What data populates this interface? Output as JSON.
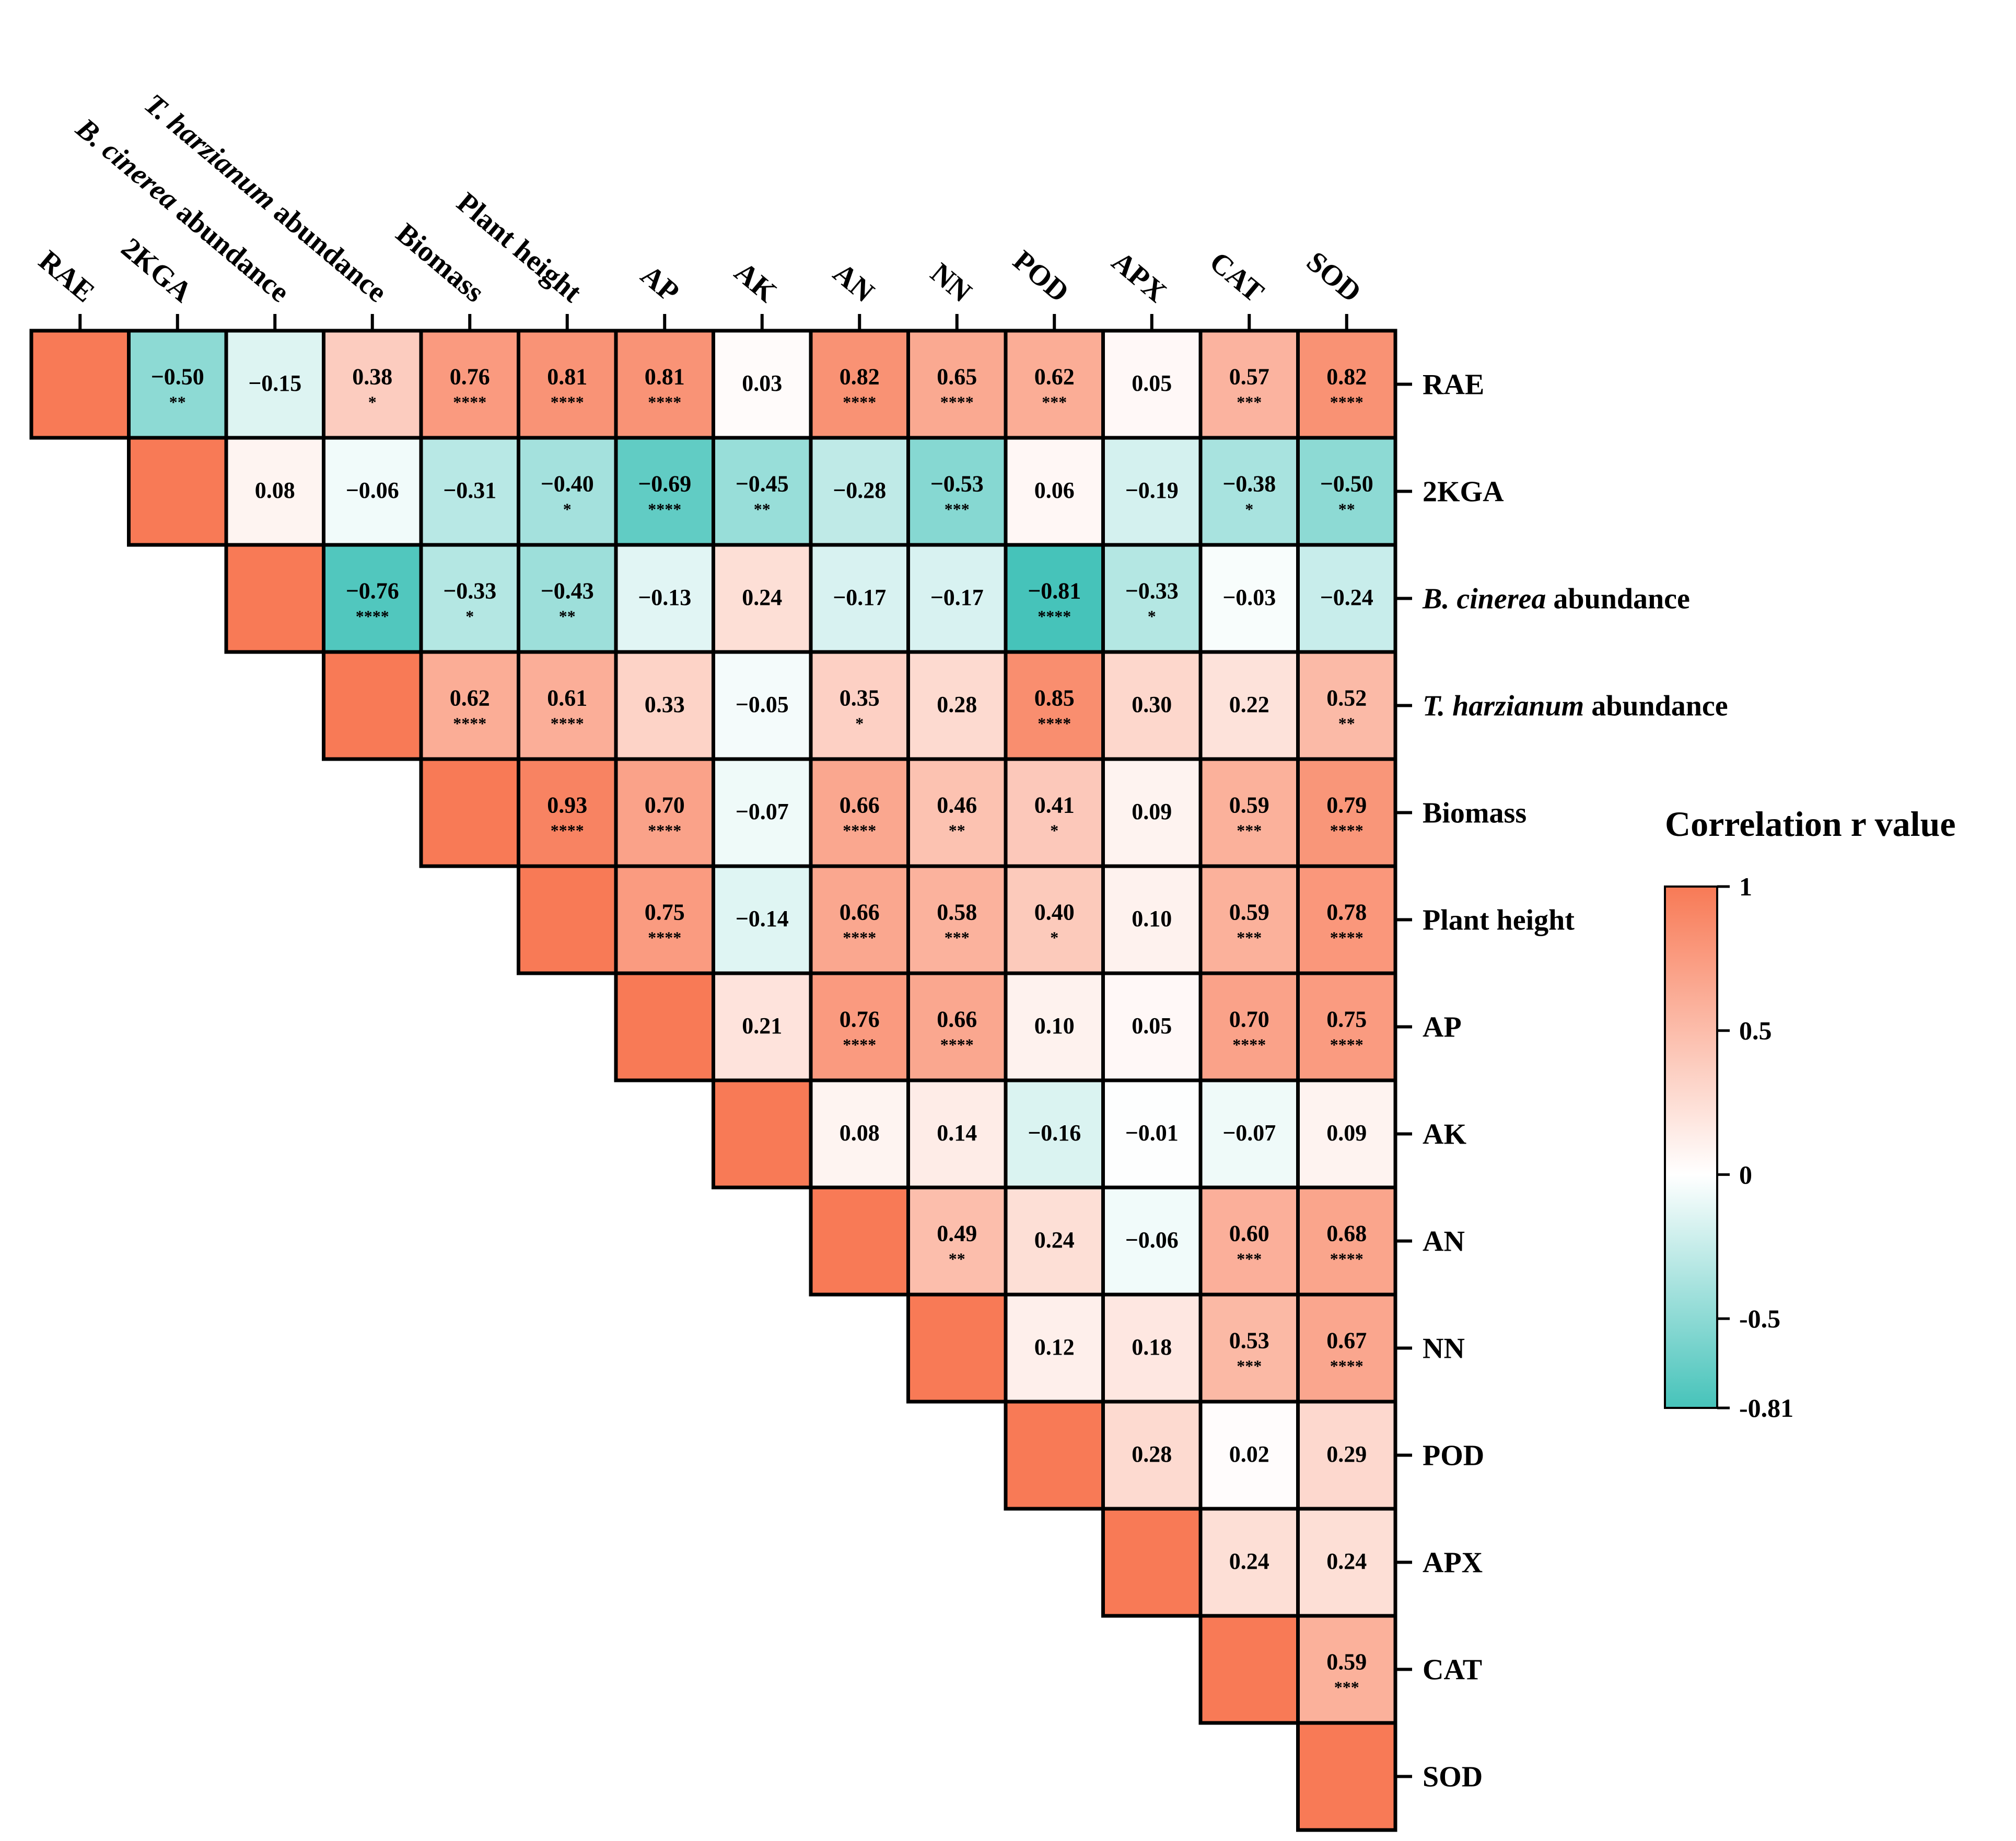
{
  "chart_data": {
    "type": "heatmap",
    "title": "",
    "colorbar": {
      "title": "Correlation r value",
      "min": -0.81,
      "max": 1,
      "ticks": [
        {
          "value": 1,
          "label": "1"
        },
        {
          "value": 0.5,
          "label": "0.5"
        },
        {
          "value": 0,
          "label": "0"
        },
        {
          "value": -0.5,
          "label": "-0.5"
        },
        {
          "value": -0.81,
          "label": "-0.81"
        }
      ]
    },
    "colors": {
      "positive": "#f87a56",
      "neutral": "#ffffff",
      "negative": "#46c3ba",
      "border": "#000000"
    },
    "variables": [
      {
        "label": "RAE"
      },
      {
        "label": "2KGA"
      },
      {
        "italic": "B. cinerea",
        "rest": "abundance"
      },
      {
        "italic": "T. harzianum",
        "rest": "abundance"
      },
      {
        "label": "Biomass"
      },
      {
        "label": "Plant  height"
      },
      {
        "label": "AP"
      },
      {
        "label": "AK"
      },
      {
        "label": "AN"
      },
      {
        "label": "NN"
      },
      {
        "label": "POD"
      },
      {
        "label": "APX"
      },
      {
        "label": "CAT"
      },
      {
        "label": "SOD"
      }
    ],
    "matrix": [
      [
        null,
        -0.5,
        -0.15,
        0.38,
        0.76,
        0.81,
        0.81,
        0.03,
        0.82,
        0.65,
        0.62,
        0.05,
        0.57,
        0.82
      ],
      [
        null,
        null,
        0.08,
        -0.06,
        -0.31,
        -0.4,
        -0.69,
        -0.45,
        -0.28,
        -0.53,
        0.06,
        -0.19,
        -0.38,
        -0.5
      ],
      [
        null,
        null,
        null,
        -0.76,
        -0.33,
        -0.43,
        -0.13,
        0.24,
        -0.17,
        -0.17,
        -0.81,
        -0.33,
        -0.03,
        -0.24
      ],
      [
        null,
        null,
        null,
        null,
        0.62,
        0.61,
        0.33,
        -0.05,
        0.35,
        0.28,
        0.85,
        0.3,
        0.22,
        0.52
      ],
      [
        null,
        null,
        null,
        null,
        null,
        0.93,
        0.7,
        -0.07,
        0.66,
        0.46,
        0.41,
        0.09,
        0.59,
        0.79
      ],
      [
        null,
        null,
        null,
        null,
        null,
        null,
        0.75,
        -0.14,
        0.66,
        0.58,
        0.4,
        0.1,
        0.59,
        0.78
      ],
      [
        null,
        null,
        null,
        null,
        null,
        null,
        null,
        0.21,
        0.76,
        0.66,
        0.1,
        0.05,
        0.7,
        0.75
      ],
      [
        null,
        null,
        null,
        null,
        null,
        null,
        null,
        null,
        0.08,
        0.14,
        -0.16,
        -0.01,
        -0.07,
        0.09
      ],
      [
        null,
        null,
        null,
        null,
        null,
        null,
        null,
        null,
        null,
        0.49,
        0.24,
        -0.06,
        0.6,
        0.68
      ],
      [
        null,
        null,
        null,
        null,
        null,
        null,
        null,
        null,
        null,
        null,
        0.12,
        0.18,
        0.53,
        0.67
      ],
      [
        null,
        null,
        null,
        null,
        null,
        null,
        null,
        null,
        null,
        null,
        null,
        0.28,
        0.02,
        0.29
      ],
      [
        null,
        null,
        null,
        null,
        null,
        null,
        null,
        null,
        null,
        null,
        null,
        null,
        0.24,
        0.24
      ],
      [
        null,
        null,
        null,
        null,
        null,
        null,
        null,
        null,
        null,
        null,
        null,
        null,
        null,
        0.59
      ],
      [
        null,
        null,
        null,
        null,
        null,
        null,
        null,
        null,
        null,
        null,
        null,
        null,
        null,
        null
      ]
    ],
    "significance": [
      [
        "",
        "**",
        "",
        "*",
        "****",
        "****",
        "****",
        "",
        "****",
        "****",
        "***",
        "",
        "***",
        "****"
      ],
      [
        "",
        "",
        "",
        "",
        "",
        "*",
        "****",
        "**",
        "",
        "***",
        "",
        "",
        "*",
        "**"
      ],
      [
        "",
        "",
        "",
        "****",
        "*",
        "**",
        "",
        "",
        "",
        "",
        "****",
        "*",
        "",
        ""
      ],
      [
        "",
        "",
        "",
        "",
        "****",
        "****",
        "",
        "",
        "*",
        "",
        "****",
        "",
        "",
        "**"
      ],
      [
        "",
        "",
        "",
        "",
        "",
        "****",
        "****",
        "",
        "****",
        "**",
        "*",
        "",
        "***",
        "****"
      ],
      [
        "",
        "",
        "",
        "",
        "",
        "",
        "****",
        "",
        "****",
        "***",
        "*",
        "",
        "***",
        "****"
      ],
      [
        "",
        "",
        "",
        "",
        "",
        "",
        "",
        "",
        "****",
        "****",
        "",
        "",
        "****",
        "****"
      ],
      [
        "",
        "",
        "",
        "",
        "",
        "",
        "",
        "",
        "",
        "",
        "",
        "",
        "",
        ""
      ],
      [
        "",
        "",
        "",
        "",
        "",
        "",
        "",
        "",
        "",
        "**",
        "",
        "",
        "***",
        "****"
      ],
      [
        "",
        "",
        "",
        "",
        "",
        "",
        "",
        "",
        "",
        "",
        "",
        "",
        "***",
        "****"
      ],
      [
        "",
        "",
        "",
        "",
        "",
        "",
        "",
        "",
        "",
        "",
        "",
        "",
        "",
        ""
      ],
      [
        "",
        "",
        "",
        "",
        "",
        "",
        "",
        "",
        "",
        "",
        "",
        "",
        "",
        ""
      ],
      [
        "",
        "",
        "",
        "",
        "",
        "",
        "",
        "",
        "",
        "",
        "",
        "",
        "",
        "***"
      ],
      [
        "",
        "",
        "",
        "",
        "",
        "",
        "",
        "",
        "",
        "",
        "",
        "",
        "",
        ""
      ]
    ]
  }
}
